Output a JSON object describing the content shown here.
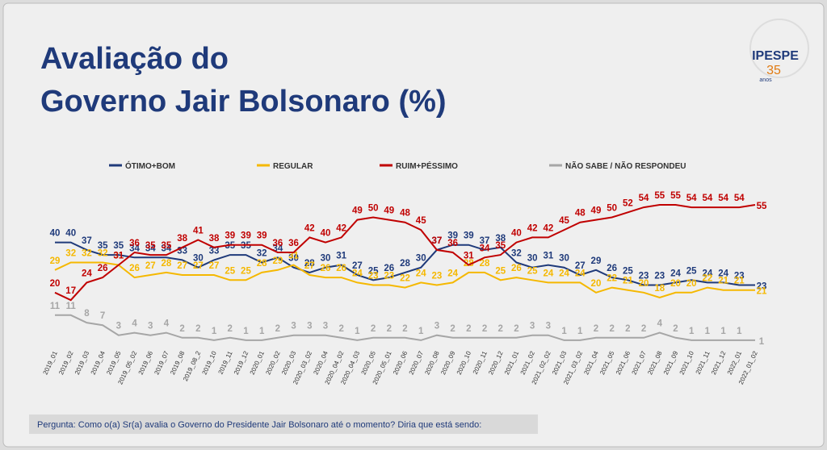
{
  "chart_data": {
    "type": "line",
    "title_lines": [
      "Avaliação do",
      "Governo Jair Bolsonaro (%)"
    ],
    "logo": {
      "name": "IPESPE",
      "number": "35",
      "suffix": "anos"
    },
    "question": "Pergunta: Como o(a) Sr(a) avalia o Governo do Presidente Jair Bolsonaro até o momento? Diria que está sendo:",
    "categories": [
      "2019_01",
      "2019_02",
      "2019_03",
      "2019_04",
      "2019_05",
      "2019_05_02",
      "2019_06",
      "2019_07",
      "2019_08",
      "2019_08_2",
      "2019_10",
      "2019_11",
      "2019_12",
      "2020_01",
      "2020_02",
      "2020_03",
      "2020_03_02",
      "2020_04",
      "2020_04_02",
      "2020_04_03",
      "2020_05",
      "2020_05_01",
      "2020_06",
      "2020_07",
      "2020_08",
      "2020_09",
      "2020_10",
      "2020_11",
      "2020_12",
      "2021_01",
      "2021_02",
      "2021_02_02",
      "2021_03",
      "2021_03_02",
      "2021_04",
      "2021_05",
      "2021_06",
      "2021_07",
      "2021_08",
      "2021_09",
      "2021_10",
      "2021_11",
      "2021_12",
      "2022_01",
      "2022_01_02"
    ],
    "series": [
      {
        "name": "ÓTIMO+BOM",
        "color": "#1f3a7a",
        "values": [
          40,
          40,
          37,
          35,
          35,
          34,
          34,
          34,
          33,
          30,
          33,
          35,
          35,
          32,
          34,
          30,
          28,
          30,
          31,
          27,
          25,
          26,
          28,
          30,
          37,
          39,
          39,
          37,
          38,
          32,
          30,
          31,
          30,
          27,
          29,
          26,
          25,
          23,
          23,
          24,
          25,
          24,
          24,
          23,
          23
        ]
      },
      {
        "name": "REGULAR",
        "color": "#f5b800",
        "values": [
          29,
          32,
          32,
          32,
          31,
          26,
          27,
          28,
          27,
          27,
          27,
          25,
          25,
          28,
          29,
          31,
          27,
          26,
          26,
          24,
          23,
          23,
          22,
          24,
          23,
          24,
          28,
          28,
          25,
          26,
          25,
          24,
          24,
          24,
          20,
          22,
          21,
          20,
          18,
          20,
          20,
          22,
          21,
          21,
          21
        ]
      },
      {
        "name": "RUIM+PÉSSIMO",
        "color": "#c00000",
        "values": [
          20,
          17,
          24,
          26,
          31,
          36,
          35,
          35,
          38,
          41,
          38,
          39,
          39,
          39,
          36,
          36,
          42,
          40,
          42,
          49,
          50,
          49,
          48,
          45,
          37,
          36,
          31,
          34,
          35,
          40,
          42,
          42,
          45,
          48,
          49,
          50,
          52,
          54,
          55,
          55,
          54,
          54,
          54,
          54,
          55
        ]
      },
      {
        "name": "NÃO SABE / NÃO RESPONDEU",
        "color": "#a6a6a6",
        "values": [
          11,
          11,
          8,
          7,
          3,
          4,
          3,
          4,
          2,
          2,
          1,
          2,
          1,
          1,
          2,
          3,
          3,
          3,
          2,
          1,
          2,
          2,
          2,
          1,
          3,
          2,
          2,
          2,
          2,
          2,
          3,
          3,
          1,
          1,
          2,
          2,
          2,
          2,
          4,
          2,
          1,
          1,
          1,
          1,
          1
        ]
      }
    ]
  }
}
